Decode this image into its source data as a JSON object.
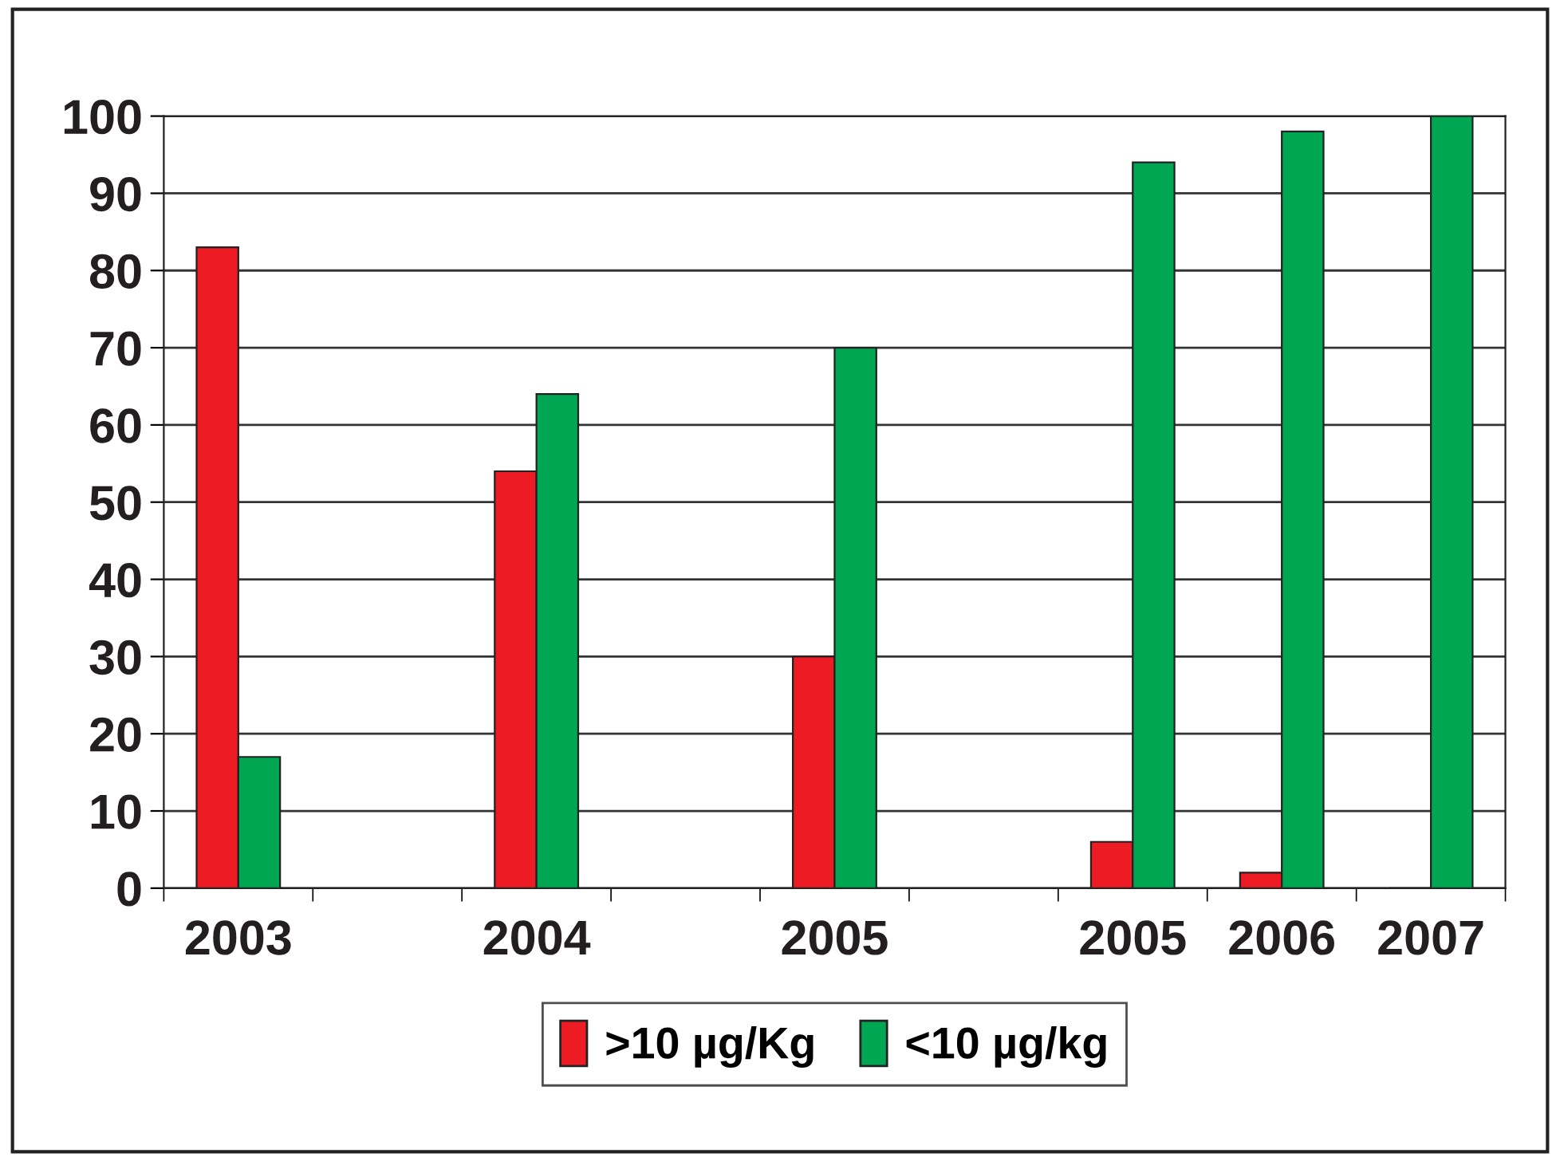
{
  "chart_data": {
    "type": "bar",
    "categories": [
      "2003",
      null,
      "2004",
      null,
      "2005",
      null,
      "2005",
      "2006",
      "2007"
    ],
    "series": [
      {
        "name": ">10 µg/Kg",
        "color": "#ed1c24",
        "values": [
          83,
          null,
          54,
          null,
          30,
          null,
          6,
          2,
          0
        ]
      },
      {
        "name": "<10 µg/kg",
        "color": "#00a651",
        "values": [
          17,
          null,
          64,
          null,
          70,
          null,
          94,
          98,
          100
        ]
      }
    ],
    "ylim": [
      0,
      100
    ],
    "yticks": [
      0,
      10,
      20,
      30,
      40,
      50,
      60,
      70,
      80,
      90,
      100
    ],
    "grid": "y",
    "legend": "bottom"
  }
}
